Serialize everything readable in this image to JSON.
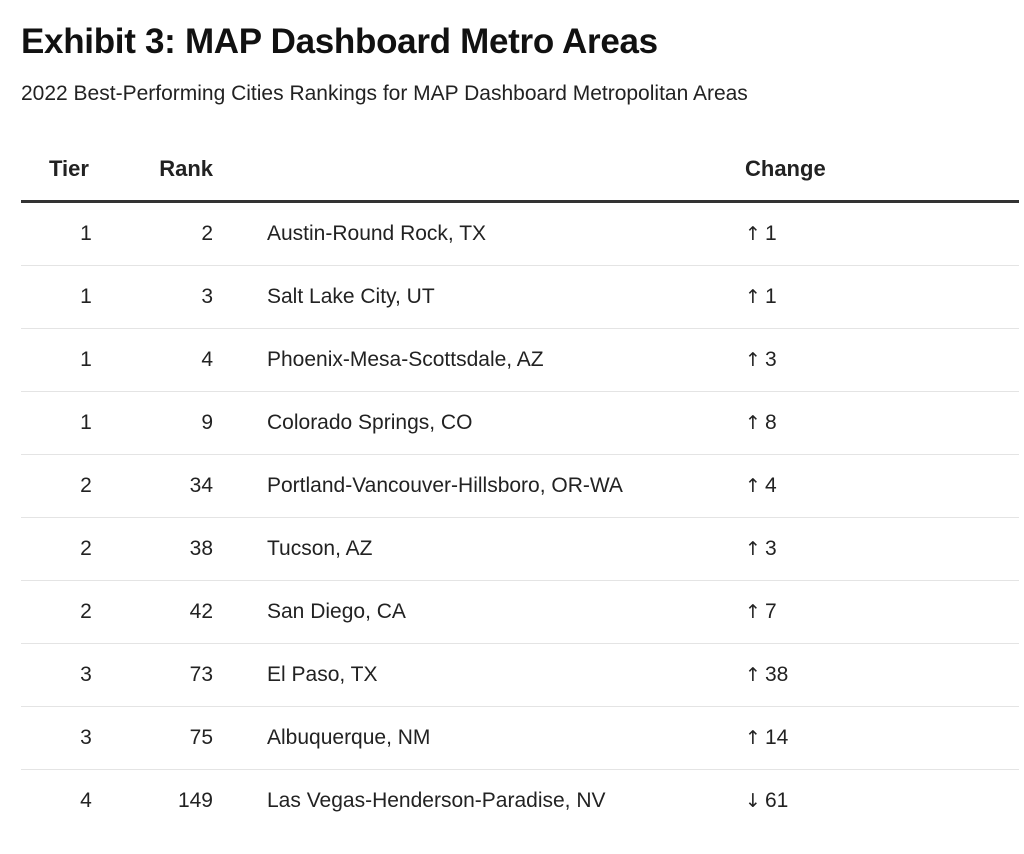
{
  "header": {
    "title": "Exhibit 3: MAP Dashboard Metro Areas",
    "subtitle": "2022 Best-Performing Cities Rankings for MAP Dashboard Metropolitan Areas"
  },
  "table": {
    "columns": {
      "tier": "Tier",
      "rank": "Rank",
      "city": "",
      "change": "Change"
    },
    "rows": [
      {
        "tier": "1",
        "rank": "2",
        "city": "Austin-Round Rock, TX",
        "change_arrow": "↑",
        "change": "1"
      },
      {
        "tier": "1",
        "rank": "3",
        "city": "Salt Lake City, UT",
        "change_arrow": "↑",
        "change": "1"
      },
      {
        "tier": "1",
        "rank": "4",
        "city": "Phoenix-Mesa-Scottsdale, AZ",
        "change_arrow": "↑",
        "change": "3"
      },
      {
        "tier": "1",
        "rank": "9",
        "city": "Colorado Springs, CO",
        "change_arrow": "↑",
        "change": "8"
      },
      {
        "tier": "2",
        "rank": "34",
        "city": "Portland-Vancouver-Hillsboro, OR-WA",
        "change_arrow": "↑",
        "change": "4"
      },
      {
        "tier": "2",
        "rank": "38",
        "city": "Tucson, AZ",
        "change_arrow": "↑",
        "change": "3"
      },
      {
        "tier": "2",
        "rank": "42",
        "city": "San Diego, CA",
        "change_arrow": "↑",
        "change": "7"
      },
      {
        "tier": "3",
        "rank": "73",
        "city": "El Paso, TX",
        "change_arrow": "↑",
        "change": "38"
      },
      {
        "tier": "3",
        "rank": "75",
        "city": "Albuquerque, NM",
        "change_arrow": "↑",
        "change": "14"
      },
      {
        "tier": "4",
        "rank": "149",
        "city": "Las Vegas-Henderson-Paradise, NV",
        "change_arrow": "↓",
        "change": "61"
      }
    ]
  }
}
